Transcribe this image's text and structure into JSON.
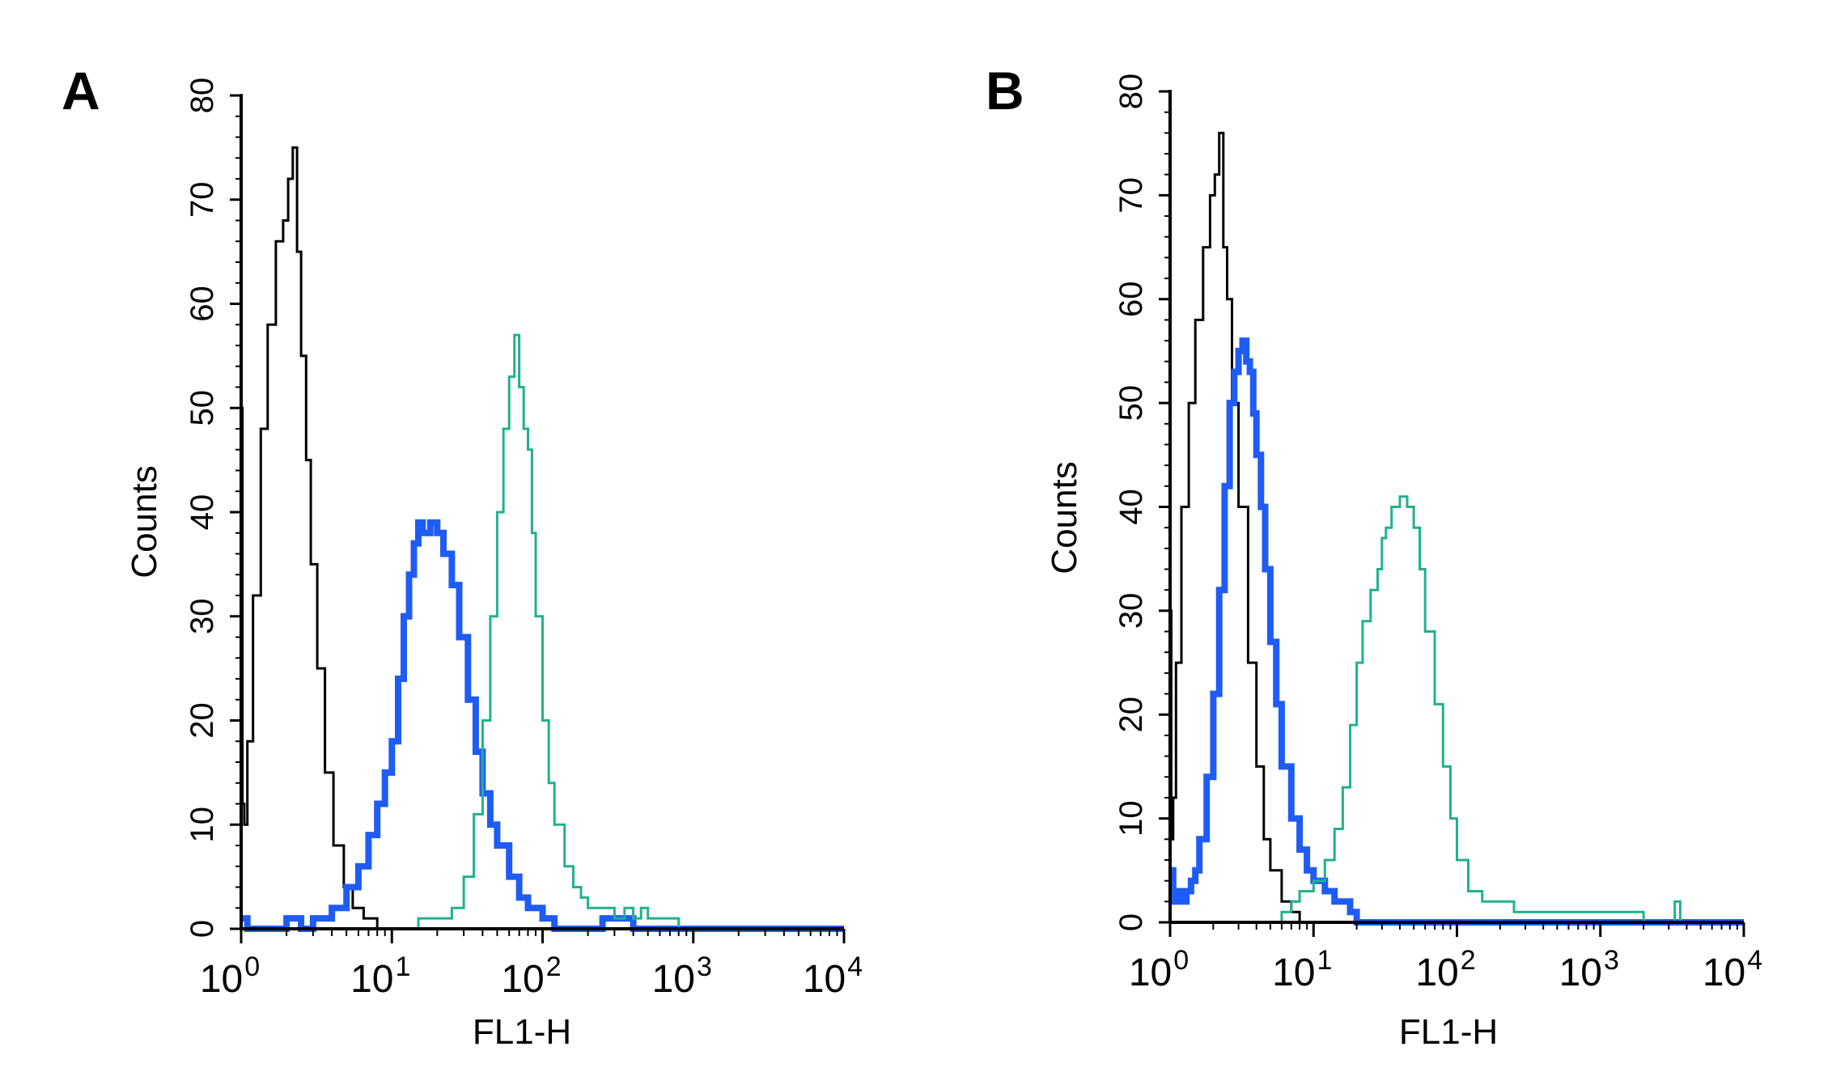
{
  "figure": {
    "colors": {
      "unstained": "#000000",
      "sample": "#1f5cf5",
      "positive": "#22b090",
      "axis": "#000000"
    }
  },
  "chart_data": [
    {
      "type": "line",
      "panel_label": "A",
      "xlabel": "FL1-H",
      "ylabel": "Counts",
      "xscale": "log",
      "xlim": [
        1,
        10000
      ],
      "ylim": [
        0,
        80
      ],
      "xticks": [
        {
          "base": "10",
          "exp": "0"
        },
        {
          "base": "10",
          "exp": "1"
        },
        {
          "base": "10",
          "exp": "2"
        },
        {
          "base": "10",
          "exp": "3"
        },
        {
          "base": "10",
          "exp": "4"
        }
      ],
      "yticks": [
        "0",
        "10",
        "20",
        "30",
        "40",
        "50",
        "60",
        "70",
        "80"
      ],
      "grid": false,
      "series": [
        {
          "color": "#000000",
          "width": "thin",
          "x": [
            1,
            1.02,
            1.05,
            1.1,
            1.2,
            1.35,
            1.5,
            1.7,
            1.9,
            2.05,
            2.2,
            2.35,
            2.5,
            2.7,
            2.9,
            3.2,
            3.6,
            4.1,
            4.8,
            5.5,
            6.5,
            8,
            10000
          ],
          "y": [
            50,
            12,
            10,
            18,
            32,
            48,
            58,
            66,
            68,
            72,
            75,
            65,
            55,
            45,
            35,
            25,
            15,
            8,
            4,
            2,
            1,
            0,
            0
          ]
        },
        {
          "color": "#1f5cf5",
          "width": "thick",
          "x": [
            1,
            1.1,
            1.3,
            1.5,
            2,
            2.5,
            3,
            3.5,
            4,
            5,
            6,
            7,
            8,
            9,
            10,
            11,
            12,
            13,
            14,
            15,
            16,
            18,
            20,
            22,
            25,
            28,
            32,
            36,
            40,
            45,
            50,
            60,
            70,
            80,
            100,
            120,
            150,
            200,
            250,
            300,
            350,
            400,
            500,
            10000
          ],
          "y": [
            1,
            0,
            0,
            0,
            1,
            0,
            1,
            1,
            2,
            4,
            6,
            9,
            12,
            15,
            18,
            24,
            30,
            34,
            37,
            39,
            38,
            39,
            38,
            36,
            33,
            28,
            22,
            17,
            13,
            10,
            8,
            5,
            3,
            2,
            1,
            0,
            0,
            0,
            1,
            1,
            1,
            0,
            0,
            0
          ]
        },
        {
          "color": "#22b090",
          "width": "thin",
          "x": [
            1,
            10,
            15,
            20,
            25,
            30,
            35,
            40,
            45,
            50,
            55,
            60,
            65,
            70,
            75,
            80,
            85,
            90,
            100,
            110,
            120,
            140,
            160,
            180,
            200,
            250,
            300,
            350,
            400,
            450,
            500,
            600,
            700,
            800,
            1000,
            10000
          ],
          "y": [
            0,
            0,
            1,
            1,
            2,
            5,
            11,
            20,
            30,
            40,
            48,
            53,
            57,
            52,
            48,
            46,
            38,
            30,
            20,
            14,
            10,
            6,
            4,
            3,
            2,
            2,
            1,
            2,
            1,
            2,
            1,
            1,
            1,
            0,
            0,
            0
          ]
        }
      ]
    },
    {
      "type": "line",
      "panel_label": "B",
      "xlabel": "FL1-H",
      "ylabel": "Counts",
      "xscale": "log",
      "xlim": [
        1,
        10000
      ],
      "ylim": [
        0,
        80
      ],
      "xticks": [
        {
          "base": "10",
          "exp": "0"
        },
        {
          "base": "10",
          "exp": "1"
        },
        {
          "base": "10",
          "exp": "2"
        },
        {
          "base": "10",
          "exp": "3"
        },
        {
          "base": "10",
          "exp": "4"
        }
      ],
      "yticks": [
        "0",
        "10",
        "20",
        "30",
        "40",
        "50",
        "60",
        "70",
        "80"
      ],
      "grid": false,
      "series": [
        {
          "color": "#000000",
          "width": "thin",
          "x": [
            1,
            1.02,
            1.05,
            1.1,
            1.2,
            1.35,
            1.5,
            1.7,
            1.9,
            2.05,
            2.2,
            2.35,
            2.5,
            2.7,
            3,
            3.5,
            4,
            4.5,
            5,
            6,
            7,
            8,
            10000
          ],
          "y": [
            30,
            8,
            12,
            25,
            40,
            50,
            58,
            65,
            70,
            72,
            76,
            65,
            60,
            50,
            40,
            25,
            15,
            8,
            5,
            2,
            1,
            0,
            0
          ]
        },
        {
          "color": "#1f5cf5",
          "width": "thick",
          "x": [
            1,
            1.05,
            1.1,
            1.2,
            1.3,
            1.4,
            1.5,
            1.6,
            1.8,
            2,
            2.2,
            2.4,
            2.6,
            2.8,
            3,
            3.2,
            3.4,
            3.6,
            3.8,
            4,
            4.3,
            4.6,
            5,
            5.5,
            6,
            7,
            8,
            9,
            10,
            12,
            14,
            16,
            18,
            20,
            10000
          ],
          "y": [
            5,
            2,
            3,
            2,
            3,
            4,
            5,
            8,
            14,
            22,
            32,
            42,
            50,
            53,
            55,
            56,
            54,
            53,
            49,
            45,
            40,
            34,
            27,
            21,
            15,
            10,
            7,
            5,
            4,
            3,
            2,
            2,
            1,
            0,
            0
          ]
        },
        {
          "color": "#22b090",
          "width": "thin",
          "x": [
            1,
            5,
            6,
            7,
            8,
            10,
            12,
            14,
            16,
            18,
            20,
            22,
            25,
            28,
            30,
            32,
            35,
            38,
            40,
            45,
            50,
            55,
            60,
            70,
            80,
            90,
            100,
            120,
            150,
            180,
            200,
            250,
            300,
            400,
            500,
            600,
            800,
            1000,
            1500,
            2000,
            2500,
            3000,
            3300,
            3600,
            10000
          ],
          "y": [
            0,
            0,
            1,
            2,
            3,
            4,
            6,
            9,
            13,
            19,
            25,
            29,
            32,
            34,
            37,
            38,
            40,
            40,
            41,
            40,
            38,
            34,
            28,
            21,
            15,
            10,
            6,
            3,
            2,
            2,
            2,
            1,
            1,
            1,
            1,
            1,
            1,
            1,
            1,
            0,
            0,
            0,
            2,
            0,
            0
          ]
        }
      ]
    }
  ]
}
